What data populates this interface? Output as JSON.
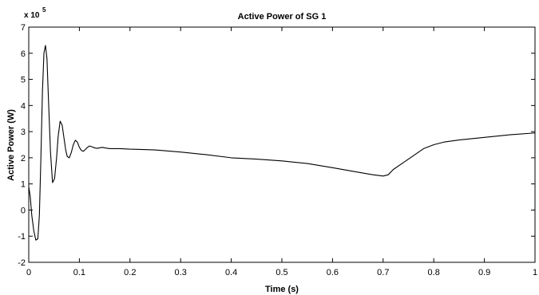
{
  "chart_data": {
    "type": "line",
    "title": "Active Power of SG 1",
    "xlabel": "Time (s)",
    "ylabel": "Active Power (W)",
    "y_multiplier": "x 10",
    "y_exponent": "5",
    "xlim": [
      0,
      1
    ],
    "ylim": [
      -2,
      7
    ],
    "x_ticks": [
      "0",
      "0.1",
      "0.2",
      "0.3",
      "0.4",
      "0.5",
      "0.6",
      "0.7",
      "0.8",
      "0.9",
      "1"
    ],
    "y_ticks": [
      "-2",
      "-1",
      "0",
      "1",
      "2",
      "3",
      "4",
      "5",
      "6",
      "7"
    ],
    "grid": false,
    "legend": false,
    "series": [
      {
        "color": "#000000",
        "x": [
          0,
          0.003,
          0.006,
          0.01,
          0.014,
          0.018,
          0.021,
          0.024,
          0.027,
          0.03,
          0.033,
          0.036,
          0.039,
          0.043,
          0.047,
          0.051,
          0.055,
          0.058,
          0.062,
          0.066,
          0.07,
          0.073,
          0.076,
          0.08,
          0.084,
          0.088,
          0.092,
          0.096,
          0.1,
          0.104,
          0.108,
          0.112,
          0.116,
          0.12,
          0.125,
          0.13,
          0.135,
          0.14,
          0.145,
          0.15,
          0.16,
          0.18,
          0.2,
          0.22,
          0.25,
          0.3,
          0.35,
          0.4,
          0.45,
          0.5,
          0.55,
          0.6,
          0.65,
          0.68,
          0.7,
          0.71,
          0.72,
          0.75,
          0.78,
          0.8,
          0.82,
          0.85,
          0.9,
          0.95,
          1.0
        ],
        "values": [
          0.9,
          0.5,
          -0.2,
          -0.8,
          -1.15,
          -1.1,
          -0.2,
          2.0,
          4.5,
          6.0,
          6.3,
          5.8,
          4.2,
          2.2,
          1.05,
          1.2,
          2.0,
          2.8,
          3.4,
          3.25,
          2.7,
          2.3,
          2.05,
          2.0,
          2.2,
          2.5,
          2.67,
          2.6,
          2.4,
          2.28,
          2.25,
          2.32,
          2.4,
          2.45,
          2.42,
          2.38,
          2.36,
          2.38,
          2.4,
          2.38,
          2.35,
          2.35,
          2.33,
          2.32,
          2.3,
          2.22,
          2.12,
          2.0,
          1.95,
          1.88,
          1.78,
          1.62,
          1.45,
          1.35,
          1.3,
          1.35,
          1.55,
          1.95,
          2.35,
          2.5,
          2.6,
          2.68,
          2.78,
          2.88,
          2.95
        ]
      }
    ]
  }
}
